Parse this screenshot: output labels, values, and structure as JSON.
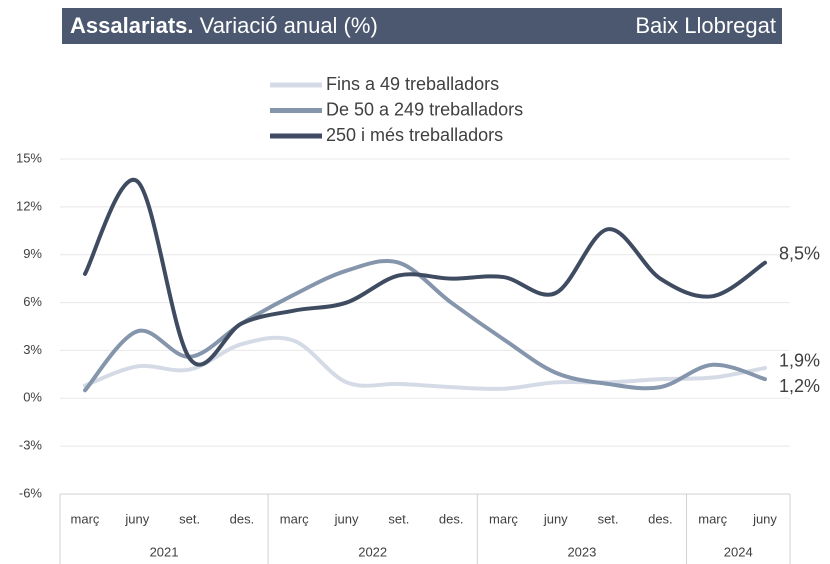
{
  "chart_data": {
    "type": "line",
    "title": "Assalariats.",
    "subtitle": "Variació anual (%)",
    "region": "Baix Llobregat",
    "categories": [
      "març",
      "juny",
      "set.",
      "des.",
      "març",
      "juny",
      "set.",
      "des.",
      "març",
      "juny",
      "set.",
      "des.",
      "març",
      "juny"
    ],
    "groups": [
      {
        "label": "2021",
        "count": 4
      },
      {
        "label": "2022",
        "count": 4
      },
      {
        "label": "2023",
        "count": 4
      },
      {
        "label": "2024",
        "count": 2
      }
    ],
    "series": [
      {
        "name": "Fins a 49 treballadors",
        "color": "#d5dbe6",
        "values": [
          0.8,
          2.0,
          1.8,
          3.4,
          3.6,
          1.0,
          0.9,
          0.7,
          0.6,
          1.0,
          1.0,
          1.2,
          1.3,
          1.9
        ],
        "value_labels": [
          null,
          null,
          null,
          null,
          null,
          null,
          null,
          null,
          null,
          null,
          null,
          null,
          null,
          "1,9%"
        ]
      },
      {
        "name": "De 50 a 249 treballadors",
        "color": "#8595ac",
        "values": [
          0.5,
          4.2,
          2.6,
          4.7,
          6.5,
          8.0,
          8.5,
          6.0,
          3.7,
          1.6,
          0.9,
          0.7,
          2.1,
          1.2
        ],
        "value_labels": [
          null,
          null,
          null,
          null,
          null,
          null,
          null,
          null,
          null,
          null,
          null,
          null,
          null,
          "1,2%"
        ]
      },
      {
        "name": "250 i més treballadors",
        "color": "#3f4b61",
        "values": [
          7.8,
          13.6,
          2.5,
          4.7,
          5.5,
          6.0,
          7.7,
          7.5,
          7.6,
          6.6,
          10.6,
          7.5,
          6.4,
          8.5
        ],
        "value_labels": [
          null,
          null,
          null,
          null,
          null,
          null,
          null,
          null,
          null,
          null,
          null,
          null,
          null,
          "8,5%"
        ]
      }
    ],
    "ylim": [
      -6,
      15
    ],
    "yticks": [
      {
        "value": -6,
        "label": "-6%"
      },
      {
        "value": -3,
        "label": "-3%"
      },
      {
        "value": 0,
        "label": "0%"
      },
      {
        "value": 3,
        "label": "3%"
      },
      {
        "value": 6,
        "label": "6%"
      },
      {
        "value": 9,
        "label": "9%"
      },
      {
        "value": 12,
        "label": "12%"
      },
      {
        "value": 15,
        "label": "15%"
      }
    ],
    "grid": true,
    "legend": "top"
  }
}
